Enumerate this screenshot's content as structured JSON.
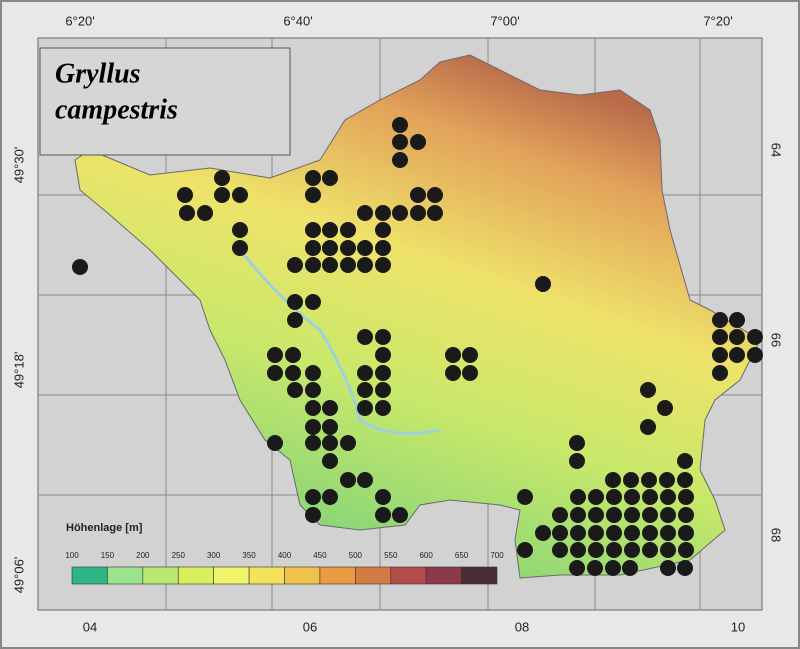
{
  "title": [
    "Gryllus",
    "campestris"
  ],
  "longitude_labels": [
    "6°20'",
    "6°40'",
    "7°00'",
    "7°20'"
  ],
  "latitude_labels": [
    "49°30'",
    "49°18'",
    "49°06'"
  ],
  "grid_x_labels": [
    "04",
    "06",
    "08",
    "10"
  ],
  "grid_y_labels": [
    "64",
    "66",
    "68"
  ],
  "legend": {
    "title": "Höhenlage [m]",
    "ticks": [
      100,
      150,
      200,
      250,
      300,
      350,
      400,
      450,
      500,
      550,
      600,
      650,
      700
    ],
    "colors": [
      "#2fb585",
      "#9be38c",
      "#b9e870",
      "#d9ef5c",
      "#f1f56a",
      "#f3e35a",
      "#f0c24a",
      "#ec9a42",
      "#d47b44",
      "#b24c4a",
      "#8a3a4a",
      "#4a2b3a"
    ]
  }
}
